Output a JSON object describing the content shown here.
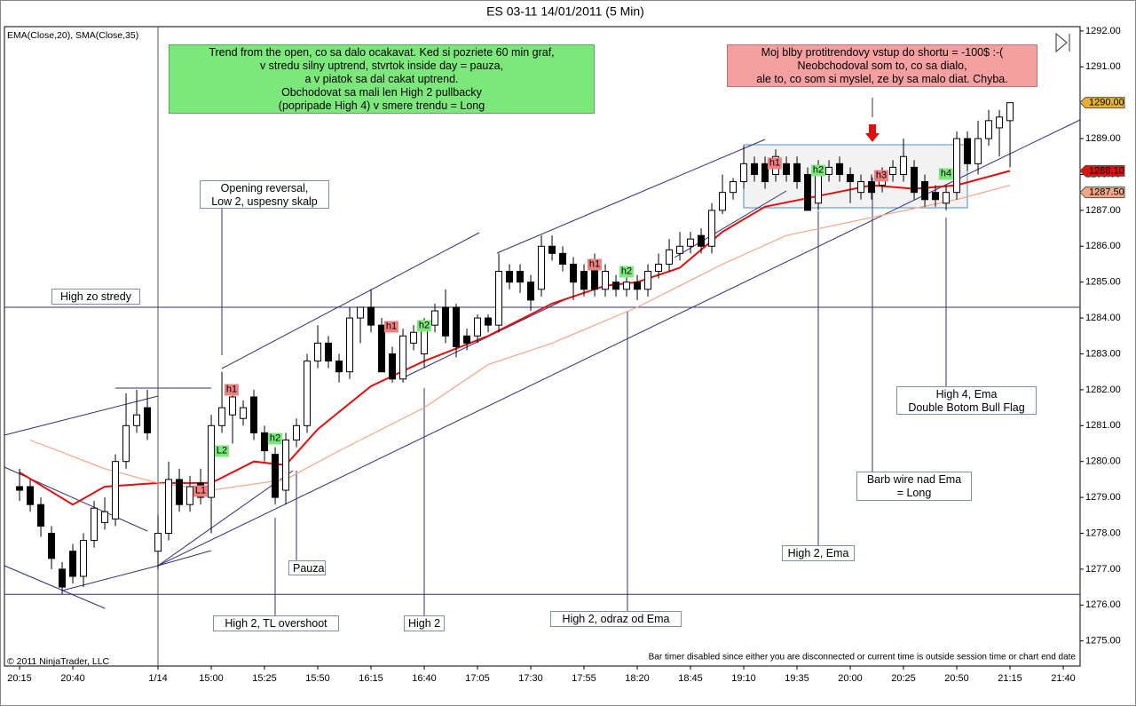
{
  "chart_data": {
    "type": "candlestick",
    "title": "ES 03-11  14/01/2011 (5 Min)",
    "indicators_label": "EMA(Close,20), SMA(Close,35)",
    "copyright": "© 2011 NinjaTrader, LLC",
    "status": "Bar timer disabled since either you are disconnected or current time is outside session time or chart end date",
    "up_color": "#ffffff",
    "down_color": "#000000",
    "open": [
      1279.3,
      1279.3,
      1278.8,
      1278.0,
      1277.0,
      1277.5,
      1276.8,
      1277.8,
      1278.3,
      1278.4,
      1280.0,
      1281.0,
      1281.5,
      1277.5,
      1278.0,
      1279.5,
      1278.8,
      1279.4,
      1279.0,
      1281.0,
      1281.3,
      1281.2,
      1281.8,
      1280.8,
      1280.2,
      1279.2,
      1280.6,
      1281.0,
      1282.8,
      1283.3,
      1282.8,
      1282.5,
      1284.0,
      1284.3,
      1283.8,
      1283.0,
      1282.3,
      1283.3,
      1283.0,
      1283.8,
      1284.3,
      1284.3,
      1283.5,
      1283.5,
      1284.0,
      1283.8,
      1285.3,
      1285.3,
      1285.0,
      1284.8,
      1286.0,
      1285.8,
      1285.5,
      1285.3,
      1285.6,
      1284.8,
      1285.0,
      1284.8,
      1285.0,
      1284.8,
      1285.3,
      1285.5,
      1285.8,
      1286.0,
      1286.3,
      1286.0,
      1287.0,
      1287.5,
      1287.8,
      1288.3,
      1288.3,
      1288.0,
      1288.3,
      1288.3,
      1288.0,
      1287.2,
      1288.0,
      1288.3,
      1288.0,
      1287.5,
      1287.8,
      1287.7,
      1288.0,
      1288.0,
      1288.2,
      1287.8,
      1287.5,
      1287.2,
      1287.5,
      1289.0,
      1288.3,
      1289.0,
      1289.3,
      1289.5
    ],
    "high": [
      1279.8,
      1279.5,
      1279.0,
      1278.2,
      1277.2,
      1277.7,
      1278.0,
      1278.9,
      1279.0,
      1280.2,
      1281.9,
      1282.0,
      1282.0,
      1278.5,
      1280.0,
      1279.8,
      1279.6,
      1279.8,
      1281.3,
      1282.5,
      1282.0,
      1281.7,
      1282.0,
      1281.0,
      1280.4,
      1280.8,
      1281.2,
      1283.0,
      1283.8,
      1283.5,
      1283.0,
      1284.3,
      1284.3,
      1284.8,
      1284.0,
      1283.2,
      1283.7,
      1283.8,
      1284.0,
      1284.4,
      1284.8,
      1284.4,
      1283.7,
      1284.1,
      1284.1,
      1285.8,
      1285.5,
      1285.5,
      1285.2,
      1286.3,
      1286.3,
      1286.0,
      1285.7,
      1285.5,
      1285.8,
      1285.5,
      1285.2,
      1285.2,
      1285.2,
      1285.5,
      1285.8,
      1286.2,
      1286.4,
      1286.4,
      1286.5,
      1287.2,
      1288.0,
      1287.9,
      1288.8,
      1288.5,
      1288.5,
      1288.7,
      1288.5,
      1288.5,
      1288.2,
      1288.4,
      1288.4,
      1288.5,
      1288.2,
      1288.0,
      1288.0,
      1288.2,
      1288.4,
      1289.0,
      1288.4,
      1288.0,
      1287.7,
      1287.7,
      1289.2,
      1289.2,
      1289.5,
      1289.8,
      1289.8,
      1290.0
    ],
    "low": [
      1278.9,
      1278.6,
      1277.9,
      1277.0,
      1276.3,
      1276.6,
      1276.5,
      1277.6,
      1278.1,
      1278.2,
      1279.8,
      1280.8,
      1280.6,
      1277.0,
      1277.8,
      1278.6,
      1278.6,
      1278.8,
      1278.0,
      1280.8,
      1280.5,
      1281.0,
      1280.6,
      1280.0,
      1278.8,
      1278.8,
      1280.4,
      1280.8,
      1282.6,
      1282.6,
      1282.2,
      1282.3,
      1283.3,
      1283.6,
      1282.5,
      1282.2,
      1282.2,
      1283.1,
      1282.6,
      1283.6,
      1283.3,
      1282.9,
      1283.1,
      1283.3,
      1283.6,
      1283.6,
      1284.8,
      1284.7,
      1284.2,
      1284.6,
      1285.6,
      1285.3,
      1284.5,
      1284.6,
      1284.6,
      1284.6,
      1284.6,
      1284.6,
      1284.5,
      1284.6,
      1285.1,
      1285.3,
      1285.6,
      1285.8,
      1285.8,
      1285.8,
      1286.9,
      1287.3,
      1287.6,
      1287.8,
      1287.6,
      1287.8,
      1287.8,
      1287.6,
      1287.0,
      1287.0,
      1287.8,
      1287.8,
      1287.2,
      1287.3,
      1287.3,
      1287.5,
      1287.8,
      1287.8,
      1287.3,
      1287.1,
      1287.1,
      1287.0,
      1287.3,
      1288.1,
      1288.0,
      1288.8,
      1288.5,
      1288.2
    ],
    "close": [
      1279.2,
      1278.8,
      1278.2,
      1277.3,
      1276.5,
      1276.8,
      1277.8,
      1278.7,
      1278.6,
      1280.0,
      1281.0,
      1281.3,
      1280.8,
      1278.0,
      1279.5,
      1278.8,
      1279.3,
      1279.0,
      1281.0,
      1281.5,
      1281.8,
      1281.5,
      1280.8,
      1280.3,
      1279.0,
      1280.6,
      1281.0,
      1282.8,
      1283.3,
      1282.8,
      1282.5,
      1284.0,
      1284.3,
      1283.8,
      1282.5,
      1282.3,
      1283.5,
      1283.6,
      1283.8,
      1284.2,
      1283.5,
      1283.2,
      1283.3,
      1284.0,
      1283.8,
      1285.3,
      1285.0,
      1285.0,
      1284.5,
      1286.0,
      1285.8,
      1285.5,
      1285.0,
      1284.8,
      1284.8,
      1285.3,
      1284.8,
      1285.0,
      1284.8,
      1285.3,
      1285.5,
      1285.9,
      1286.0,
      1286.2,
      1286.0,
      1287.0,
      1287.5,
      1287.8,
      1288.3,
      1288.0,
      1287.8,
      1288.5,
      1288.0,
      1287.8,
      1287.0,
      1288.2,
      1288.2,
      1288.0,
      1287.8,
      1287.8,
      1287.5,
      1288.0,
      1288.2,
      1288.5,
      1287.5,
      1287.3,
      1287.3,
      1287.5,
      1289.0,
      1288.3,
      1289.0,
      1289.5,
      1289.6,
      1290.0
    ],
    "lines": [
      {
        "color": "#e01010",
        "width": 2,
        "x": [
          0,
          5,
          8,
          13,
          18,
          22,
          25,
          28,
          33,
          38,
          44,
          50,
          55,
          58,
          62,
          66,
          70,
          75,
          80,
          84,
          88,
          93
        ],
        "values": [
          1279.7,
          1278.8,
          1279.3,
          1279.4,
          1279.4,
          1280.0,
          1279.9,
          1280.9,
          1282.1,
          1282.8,
          1283.5,
          1284.4,
          1284.9,
          1285.0,
          1285.4,
          1286.4,
          1287.1,
          1287.4,
          1287.7,
          1287.6,
          1287.7,
          1288.1
        ]
      },
      {
        "color": "#f4a585",
        "width": 1.2,
        "x": [
          1,
          8,
          13,
          18,
          25,
          30,
          38,
          44,
          50,
          58,
          66,
          72,
          80,
          88,
          93
        ],
        "values": [
          1280.6,
          1279.8,
          1279.4,
          1279.2,
          1279.5,
          1280.3,
          1281.5,
          1282.7,
          1283.3,
          1284.3,
          1285.5,
          1286.3,
          1286.8,
          1287.3,
          1287.7
        ]
      }
    ],
    "hlines": [
      1284.3,
      1276.3
    ],
    "price_markers": [
      {
        "value": 1290,
        "label": "1290.00",
        "color": "#e8b030"
      },
      {
        "value": 1288.1,
        "label": "1288.10",
        "color": "#e01010"
      },
      {
        "value": 1287.5,
        "label": "1287.50",
        "color": "#f4a585"
      }
    ],
    "ylim": [
      1274.3,
      1292.12
    ],
    "yticks": [
      {
        "value": 1292,
        "label": "1292.00"
      },
      {
        "value": 1291,
        "label": "1291.00"
      },
      {
        "value": 1290,
        "label": "1290.00"
      },
      {
        "value": 1289,
        "label": "1289.00"
      },
      {
        "value": 1288,
        "label": "1288.00"
      },
      {
        "value": 1287,
        "label": "1287.00"
      },
      {
        "value": 1286,
        "label": "1286.00"
      },
      {
        "value": 1285,
        "label": "1285.00"
      },
      {
        "value": 1284,
        "label": "1284.00"
      },
      {
        "value": 1283,
        "label": "1283.00"
      },
      {
        "value": 1282,
        "label": "1282.00"
      },
      {
        "value": 1281,
        "label": "1281.00"
      },
      {
        "value": 1280,
        "label": "1280.00"
      },
      {
        "value": 1279,
        "label": "1279.00"
      },
      {
        "value": 1278,
        "label": "1278.00"
      },
      {
        "value": 1277,
        "label": "1277.00"
      },
      {
        "value": 1276,
        "label": "1276.00"
      },
      {
        "value": 1275,
        "label": "1275.00"
      }
    ],
    "xlim": [
      -1.42,
      99.58
    ],
    "xticks": [
      {
        "value": 0,
        "label": "20:15"
      },
      {
        "value": 5,
        "label": "20:40"
      },
      {
        "value": 13,
        "label": "1/14"
      },
      {
        "value": 18,
        "label": "15:00"
      },
      {
        "value": 23,
        "label": "15:25"
      },
      {
        "value": 28,
        "label": "15:50"
      },
      {
        "value": 33,
        "label": "16:15"
      },
      {
        "value": 38,
        "label": "16:40"
      },
      {
        "value": 43,
        "label": "17:05"
      },
      {
        "value": 48,
        "label": "17:30"
      },
      {
        "value": 53,
        "label": "17:55"
      },
      {
        "value": 58,
        "label": "18:20"
      },
      {
        "value": 63,
        "label": "18:45"
      },
      {
        "value": 68,
        "label": "19:10"
      },
      {
        "value": 73,
        "label": "19:35"
      },
      {
        "value": 78,
        "label": "20:00"
      },
      {
        "value": 83,
        "label": "20:25"
      },
      {
        "value": 88,
        "label": "20:50"
      },
      {
        "value": 93,
        "label": "21:15"
      },
      {
        "value": 98,
        "label": "21:40"
      }
    ],
    "notes": {
      "plan": [
        "Trend from the open, co sa dalo ocakavat. Ked si pozriete 60 min graf,",
        "v stredu silny uptrend, stvrtok inside day = pauza,",
        "a v piatok sa dal cakat uptrend.",
        "Obchodovat sa mali len High 2 pullbacky",
        "(popripade High 4) v smere trendu = Long"
      ],
      "mistake": [
        "Moj blby protitrendovy vstup do shortu = -100$ :-(",
        "Neobchodoval som to, co sa dialo,",
        "ale to, co som si myslel, ze by sa malo diat. Chyba."
      ],
      "opening": [
        "Opening reversal,",
        "Low 2, uspesny skalp"
      ],
      "high_wed": [
        "High zo stredy"
      ],
      "pauza": [
        "Pauza"
      ],
      "tl_overshoot": [
        "High 2, TL overshoot"
      ],
      "high2": [
        "High 2"
      ],
      "odraz": [
        "High 2, odraz od Ema"
      ],
      "high2_ema": [
        "High 2, Ema"
      ],
      "barb": [
        "Barb wire nad Ema",
        "= Long"
      ],
      "high4": [
        "High 4, Ema",
        "Double Botom Bull Flag"
      ]
    },
    "tags": [
      "h1",
      "L2",
      "h2",
      "L1",
      "h1",
      "h2",
      "h1",
      "h2",
      "h1",
      "h2",
      "h3",
      "h4"
    ]
  }
}
